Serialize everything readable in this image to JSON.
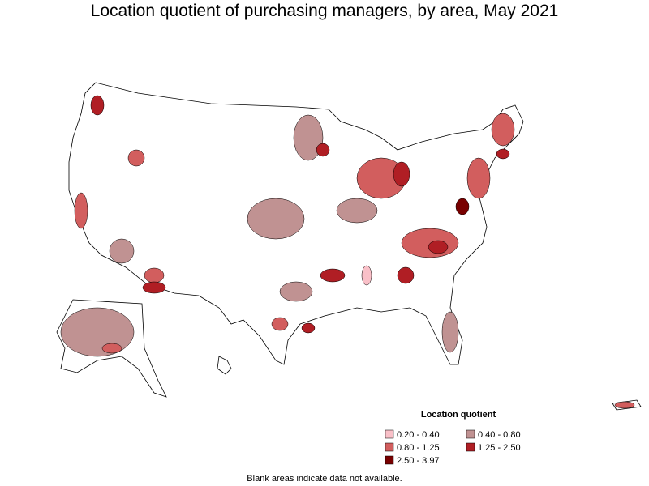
{
  "title": "Location quotient of purchasing managers, by area, May 2021",
  "legend": {
    "title": "Location quotient",
    "items": [
      {
        "label": "0.20 - 0.40",
        "color": "#f9c0c8"
      },
      {
        "label": "0.40 - 0.80",
        "color": "#c09292"
      },
      {
        "label": "0.80 - 1.25",
        "color": "#d25e5e"
      },
      {
        "label": "1.25 - 2.50",
        "color": "#b01e24"
      },
      {
        "label": "2.50 - 3.97",
        "color": "#780000"
      }
    ]
  },
  "footnote": "Blank areas indicate data not available."
}
